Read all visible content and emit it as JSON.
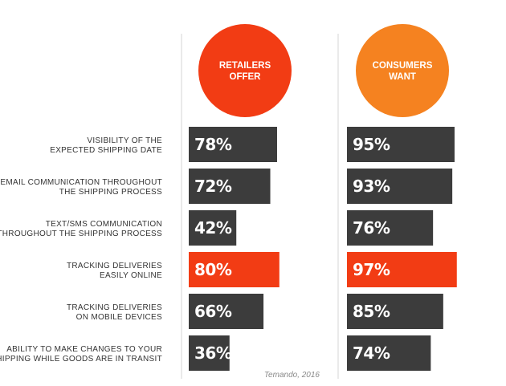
{
  "chart_data": {
    "type": "bar",
    "orientation": "horizontal",
    "categories": [
      "VISIBILITY OF THE\nEXPECTED SHIPPING DATE",
      "EMAIL COMMUNICATION THROUGHOUT\nTHE SHIPPING PROCESS",
      "TEXT/SMS COMMUNICATION\nTHROUGHOUT THE SHIPPING PROCESS",
      "TRACKING DELIVERIES\nEASILY ONLINE",
      "TRACKING DELIVERIES\nON MOBILE DEVICES",
      "ABILITY TO MAKE CHANGES TO YOUR\nSHIPPING WHILE GOODS ARE IN TRANSIT"
    ],
    "series": [
      {
        "name": "RETAILERS\nOFFER",
        "values": [
          78,
          72,
          42,
          80,
          66,
          36
        ],
        "color": "#f23c14"
      },
      {
        "name": "CONSUMERS\nWANT",
        "values": [
          95,
          93,
          76,
          97,
          85,
          74
        ],
        "color": "#f58220"
      }
    ],
    "value_suffix": "%",
    "highlight_index": 3,
    "highlight_color": "#f23c14",
    "bar_color": "#3c3c3c",
    "xlim": [
      0,
      100
    ],
    "grid": false,
    "legend": "top",
    "source": "Temando, 2016"
  }
}
